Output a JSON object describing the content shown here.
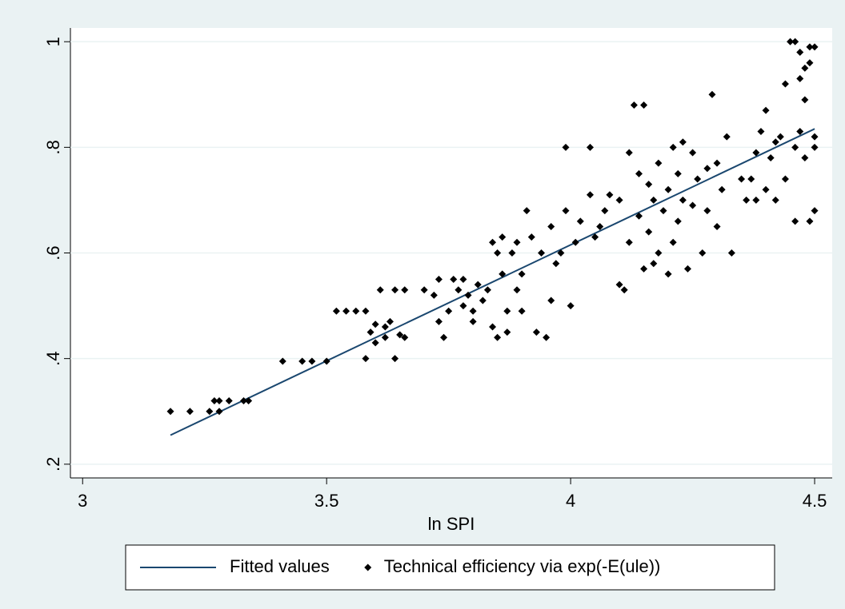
{
  "chart_data": {
    "type": "scatter",
    "xlabel": "ln SPI",
    "xlim": [
      2.975,
      4.536
    ],
    "xticks": [
      3,
      3.5,
      4,
      4.5
    ],
    "ylim": [
      0.174,
      1.026
    ],
    "yticks": [
      {
        "value": 0.2,
        "label": ".2"
      },
      {
        "value": 0.4,
        "label": ".4"
      },
      {
        "value": 0.6,
        "label": ".6"
      },
      {
        "value": 0.8,
        "label": ".8"
      },
      1
    ],
    "grid": true,
    "series": [
      {
        "name": "Fitted values",
        "color": "#1a476f",
        "mode": "line",
        "x": [
          3.18,
          4.5
        ],
        "values": [
          0.255,
          0.835
        ]
      },
      {
        "name": "Technical efficiency via exp(-E(ule))",
        "color": "#000000",
        "mode": "markers",
        "x": [
          3.18,
          3.22,
          3.26,
          3.27,
          3.28,
          3.28,
          3.3,
          3.33,
          3.34,
          3.41,
          3.45,
          3.47,
          3.5,
          3.52,
          3.54,
          3.56,
          3.58,
          3.58,
          3.59,
          3.6,
          3.6,
          3.61,
          3.62,
          3.63,
          3.64,
          3.64,
          3.65,
          3.66,
          3.66,
          3.62,
          3.7,
          3.72,
          3.73,
          3.73,
          3.74,
          3.75,
          3.76,
          3.77,
          3.78,
          3.78,
          3.79,
          3.8,
          3.8,
          3.81,
          3.82,
          3.83,
          3.84,
          3.84,
          3.85,
          3.85,
          3.86,
          3.86,
          3.87,
          3.87,
          3.88,
          3.89,
          3.89,
          3.9,
          3.9,
          3.91,
          3.92,
          3.93,
          3.94,
          3.95,
          3.96,
          3.96,
          3.97,
          3.98,
          3.99,
          4.0,
          4.01,
          3.99,
          4.04,
          4.02,
          4.04,
          4.05,
          4.06,
          4.07,
          4.08,
          4.1,
          4.1,
          4.11,
          4.12,
          4.12,
          4.13,
          4.14,
          4.14,
          4.15,
          4.15,
          4.16,
          4.16,
          4.17,
          4.17,
          4.18,
          4.18,
          4.19,
          4.2,
          4.2,
          4.21,
          4.21,
          4.22,
          4.22,
          4.23,
          4.23,
          4.24,
          4.25,
          4.25,
          4.26,
          4.27,
          4.28,
          4.28,
          4.29,
          4.3,
          4.3,
          4.31,
          4.32,
          4.33,
          4.35,
          4.36,
          4.37,
          4.38,
          4.38,
          4.39,
          4.4,
          4.4,
          4.41,
          4.42,
          4.42,
          4.43,
          4.44,
          4.44,
          4.45,
          4.46,
          4.46,
          4.46,
          4.47,
          4.47,
          4.48,
          4.48,
          4.48,
          4.49,
          4.49,
          4.49,
          4.5,
          4.5,
          4.5,
          4.5,
          4.47
        ],
        "values": [
          0.3,
          0.3,
          0.3,
          0.32,
          0.3,
          0.32,
          0.32,
          0.32,
          0.32,
          0.395,
          0.395,
          0.395,
          0.395,
          0.49,
          0.49,
          0.49,
          0.49,
          0.4,
          0.45,
          0.465,
          0.43,
          0.53,
          0.46,
          0.47,
          0.4,
          0.53,
          0.445,
          0.44,
          0.53,
          0.44,
          0.53,
          0.52,
          0.55,
          0.47,
          0.44,
          0.49,
          0.55,
          0.53,
          0.5,
          0.55,
          0.52,
          0.49,
          0.47,
          0.54,
          0.51,
          0.53,
          0.62,
          0.46,
          0.44,
          0.6,
          0.63,
          0.56,
          0.49,
          0.45,
          0.6,
          0.53,
          0.62,
          0.56,
          0.49,
          0.68,
          0.63,
          0.45,
          0.6,
          0.44,
          0.51,
          0.65,
          0.58,
          0.6,
          0.68,
          0.5,
          0.62,
          0.8,
          0.8,
          0.66,
          0.71,
          0.63,
          0.65,
          0.68,
          0.71,
          0.54,
          0.7,
          0.53,
          0.62,
          0.79,
          0.88,
          0.75,
          0.67,
          0.57,
          0.88,
          0.73,
          0.64,
          0.7,
          0.58,
          0.77,
          0.6,
          0.68,
          0.72,
          0.56,
          0.62,
          0.8,
          0.75,
          0.66,
          0.7,
          0.81,
          0.57,
          0.69,
          0.79,
          0.74,
          0.6,
          0.68,
          0.76,
          0.9,
          0.65,
          0.77,
          0.72,
          0.82,
          0.6,
          0.74,
          0.7,
          0.74,
          0.79,
          0.7,
          0.83,
          0.87,
          0.72,
          0.78,
          0.7,
          0.81,
          0.82,
          0.74,
          0.92,
          1.0,
          0.66,
          0.8,
          1.0,
          0.93,
          0.83,
          0.78,
          0.95,
          0.89,
          0.99,
          0.96,
          0.66,
          0.8,
          0.68,
          0.99,
          0.82,
          0.98
        ]
      }
    ]
  }
}
